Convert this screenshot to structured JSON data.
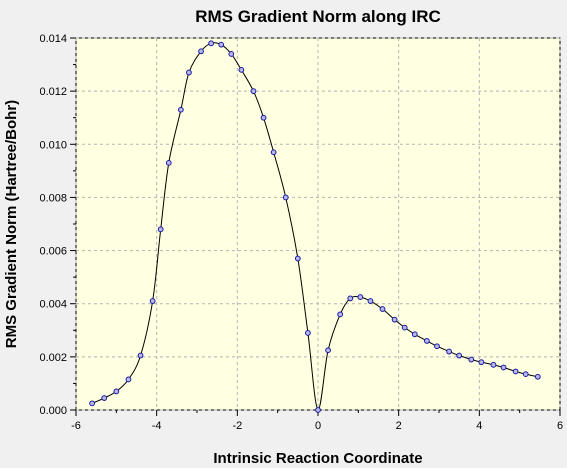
{
  "chart_data": {
    "type": "line",
    "title": "RMS Gradient Norm along IRC",
    "xlabel": "Intrinsic Reaction Coordinate",
    "ylabel": "RMS Gradient Norm (Hartree/Bohr)",
    "xlim": [
      -6,
      6
    ],
    "ylim": [
      0,
      0.014
    ],
    "xticks": [
      -6,
      -4,
      -2,
      0,
      2,
      4,
      6
    ],
    "yticks": [
      0,
      0.002,
      0.004,
      0.006,
      0.008,
      0.01,
      0.012,
      0.014
    ],
    "ytick_labels": [
      "0.000",
      "0.002",
      "0.004",
      "0.006",
      "0.008",
      "0.010",
      "0.012",
      "0.014"
    ],
    "grid": true,
    "colors": {
      "plot_background": "#ffffe1",
      "line": "#000000",
      "marker_stroke": "#1c1c9e",
      "marker_fill": "#b8b8ee",
      "grid": "#b4b4b4"
    },
    "series": [
      {
        "x": [
          -5.6,
          -5.3,
          -5.0,
          -4.7,
          -4.4,
          -4.1,
          -3.9,
          -3.7,
          -3.4,
          -3.2,
          -2.9,
          -2.65,
          -2.4,
          -2.15,
          -1.9,
          -1.6,
          -1.35,
          -1.1,
          -0.8,
          -0.5,
          -0.25,
          0.0,
          0.25,
          0.55,
          0.8,
          1.05,
          1.3,
          1.6,
          1.9,
          2.15,
          2.4,
          2.7,
          2.95,
          3.25,
          3.5,
          3.8,
          4.05,
          4.35,
          4.6,
          4.9,
          5.15,
          5.45
        ],
        "y": [
          0.00025,
          0.00045,
          0.0007,
          0.00115,
          0.00205,
          0.0041,
          0.0068,
          0.0093,
          0.0113,
          0.0127,
          0.0135,
          0.0138,
          0.01375,
          0.0134,
          0.0128,
          0.012,
          0.011,
          0.0097,
          0.008,
          0.0057,
          0.0029,
          0.0,
          0.00225,
          0.0036,
          0.0042,
          0.00425,
          0.0041,
          0.0038,
          0.0034,
          0.0031,
          0.00285,
          0.0026,
          0.0024,
          0.0022,
          0.00205,
          0.0019,
          0.0018,
          0.0017,
          0.0016,
          0.00145,
          0.00135,
          0.00125
        ]
      }
    ]
  }
}
